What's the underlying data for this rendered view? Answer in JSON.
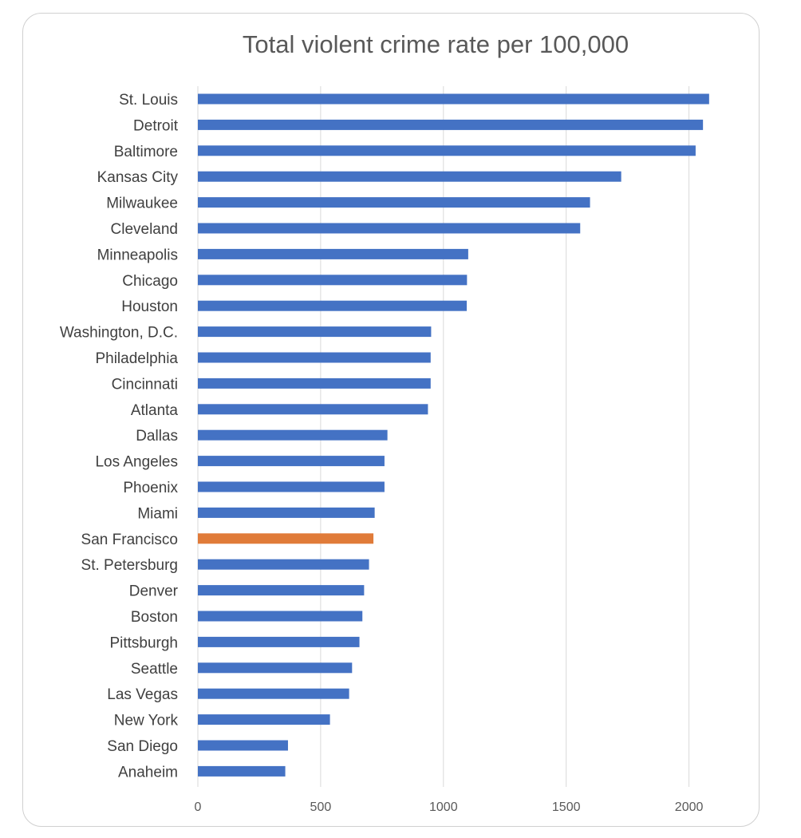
{
  "chart_data": {
    "type": "bar",
    "orientation": "horizontal",
    "title": "Total violent crime rate per 100,000",
    "xlabel": "",
    "ylabel": "",
    "xlim": [
      0,
      2100
    ],
    "xticks": [
      0,
      500,
      1000,
      1500,
      2000
    ],
    "grid": true,
    "legend": "none",
    "categories": [
      "St. Louis",
      "Detroit",
      "Baltimore",
      "Kansas City",
      "Milwaukee",
      "Cleveland",
      "Minneapolis",
      "Chicago",
      "Houston",
      "Washington, D.C.",
      "Philadelphia",
      "Cincinnati",
      "Atlanta",
      "Dallas",
      "Los Angeles",
      "Phoenix",
      "Miami",
      "San Francisco",
      "St. Petersburg",
      "Denver",
      "Boston",
      "Pittsburgh",
      "Seattle",
      "Las Vegas",
      "New York",
      "San Diego",
      "Anaheim"
    ],
    "values": [
      2082,
      2057,
      2027,
      1724,
      1597,
      1557,
      1101,
      1096,
      1095,
      950,
      948,
      948,
      937,
      772,
      760,
      760,
      720,
      715,
      697,
      677,
      670,
      658,
      628,
      616,
      538,
      367,
      356
    ],
    "highlight_category": "San Francisco",
    "colors": {
      "bar": "#4472C4",
      "highlight": "#E07B39"
    }
  }
}
